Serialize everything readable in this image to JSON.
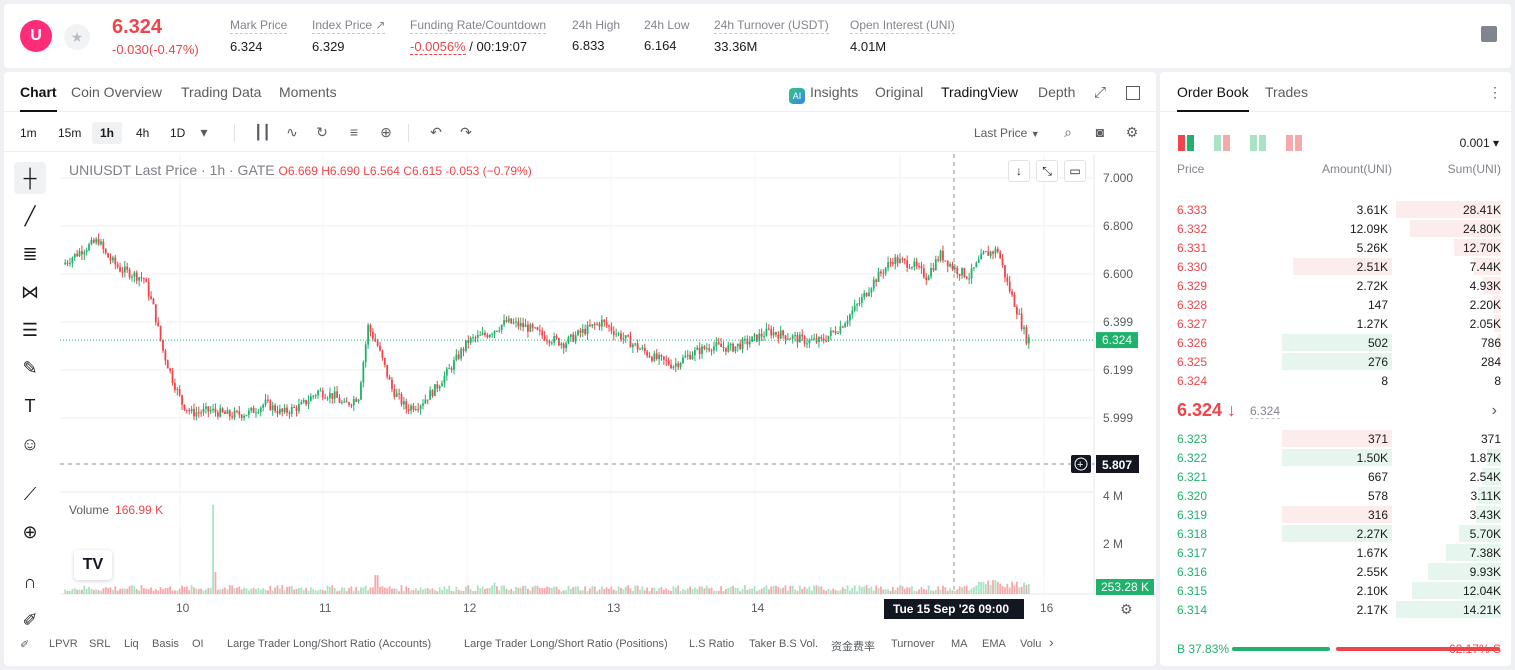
{
  "header": {
    "logo_letter": "U",
    "last_price": "6.324",
    "change": "-0.030(-0.47%)",
    "stats": [
      {
        "label": "Mark Price",
        "value": "6.324"
      },
      {
        "label": "Index Price ↗",
        "value": "6.329"
      },
      {
        "label": "Funding Rate/Countdown",
        "value": "-0.0056%",
        "value2": " / 00:19:07"
      },
      {
        "label": "24h High",
        "value": "6.833"
      },
      {
        "label": "24h Low",
        "value": "6.164"
      },
      {
        "label": "24h Turnover (USDT)",
        "value": "33.36M"
      },
      {
        "label": "Open Interest (UNI)",
        "value": "4.01M"
      }
    ]
  },
  "chart_tabs": {
    "left": [
      "Chart",
      "Coin Overview",
      "Trading Data",
      "Moments"
    ],
    "right": [
      "Insights",
      "Original",
      "TradingView",
      "Depth"
    ],
    "ai_badge": "AI"
  },
  "toolbar": {
    "timeframes": [
      "1m",
      "15m",
      "1h",
      "4h",
      "1D"
    ],
    "last_price_select": "Last Price"
  },
  "legend": {
    "symbol": "UNIUSDT Last Price · 1h · GATE",
    "ohlc": "O6.669  H6.690  L6.564  C6.615  -0.053 (−0.79%)"
  },
  "volume_legend": {
    "label": "Volume",
    "value": "166.99 K"
  },
  "price_axis": {
    "ticks": [
      "7.000",
      "6.800",
      "6.600",
      "6.399",
      "6.199",
      "5.999"
    ],
    "current_label": "6.324",
    "crosshair_label": "5.807",
    "volume_ticks": [
      "4 M",
      "2 M"
    ],
    "volume_current": "253.28 K"
  },
  "time_axis": {
    "ticks": [
      "10",
      "11",
      "12",
      "13",
      "14",
      "16"
    ],
    "crosshair_label": "Tue 15 Sep '26   09:00"
  },
  "indicators": [
    "LPVR",
    "SRL",
    "Liq",
    "Basis",
    "OI",
    "Large Trader Long/Short Ratio (Accounts)",
    "Large Trader Long/Short Ratio (Positions)",
    "L.S Ratio",
    "Taker B.S Vol.",
    "资金费率",
    "Turnover",
    "MA",
    "EMA",
    "Volu"
  ],
  "tv_logo": "TV",
  "orderbook": {
    "tabs": [
      "Order Book",
      "Trades"
    ],
    "precision": "0.001 ▾",
    "columns": [
      "Price",
      "Amount(UNI)",
      "Sum(UNI)"
    ],
    "asks": [
      {
        "price": "6.333",
        "amount": "3.61K",
        "sum": "28.41K",
        "a": 0,
        "s": 1.0
      },
      {
        "price": "6.332",
        "amount": "12.09K",
        "sum": "24.80K",
        "a": 0,
        "s": 0.87
      },
      {
        "price": "6.331",
        "amount": "5.26K",
        "sum": "12.70K",
        "a": 0,
        "s": 0.45
      },
      {
        "price": "6.330",
        "amount": "2.51K",
        "sum": "7.44K",
        "a": 0.9,
        "s": 0.26
      },
      {
        "price": "6.329",
        "amount": "2.72K",
        "sum": "4.93K",
        "a": 0,
        "s": 0.17
      },
      {
        "price": "6.328",
        "amount": "147",
        "sum": "2.20K",
        "a": 0,
        "s": 0.08
      },
      {
        "price": "6.327",
        "amount": "1.27K",
        "sum": "2.05K",
        "a": 0,
        "s": 0.07
      },
      {
        "price": "6.326",
        "amount": "502",
        "sum": "786",
        "a": 1.0,
        "s": 0.03,
        "green": true
      },
      {
        "price": "6.325",
        "amount": "276",
        "sum": "284",
        "a": 1.0,
        "s": 0.01,
        "green": true
      },
      {
        "price": "6.324",
        "amount": "8",
        "sum": "8",
        "a": 0,
        "s": 0
      }
    ],
    "mid_price": "6.324 ↓",
    "mid_mark": "6.324",
    "bids": [
      {
        "price": "6.323",
        "amount": "371",
        "sum": "371",
        "a": 1.0,
        "s": 0.0,
        "red": true
      },
      {
        "price": "6.322",
        "amount": "1.50K",
        "sum": "1.87K",
        "a": 1.0,
        "s": 0.13
      },
      {
        "price": "6.321",
        "amount": "667",
        "sum": "2.54K",
        "a": 0,
        "s": 0.18
      },
      {
        "price": "6.320",
        "amount": "578",
        "sum": "3.11K",
        "a": 0,
        "s": 0.22
      },
      {
        "price": "6.319",
        "amount": "316",
        "sum": "3.43K",
        "a": 1.0,
        "s": 0.24,
        "red": true
      },
      {
        "price": "6.318",
        "amount": "2.27K",
        "sum": "5.70K",
        "a": 1.0,
        "s": 0.4
      },
      {
        "price": "6.317",
        "amount": "1.67K",
        "sum": "7.38K",
        "a": 0,
        "s": 0.52
      },
      {
        "price": "6.316",
        "amount": "2.55K",
        "sum": "9.93K",
        "a": 0,
        "s": 0.7
      },
      {
        "price": "6.315",
        "amount": "2.10K",
        "sum": "12.04K",
        "a": 0,
        "s": 0.85
      },
      {
        "price": "6.314",
        "amount": "2.17K",
        "sum": "14.21K",
        "a": 0,
        "s": 1.0
      }
    ],
    "buy_ratio": "B 37.83%",
    "sell_ratio": "62.17% S",
    "buy_fraction": 0.3783
  },
  "colors": {
    "up": "#20b26c",
    "down": "#ef454a",
    "up_vol": "#a7e3c4",
    "down_vol": "#f7a8ab"
  }
}
